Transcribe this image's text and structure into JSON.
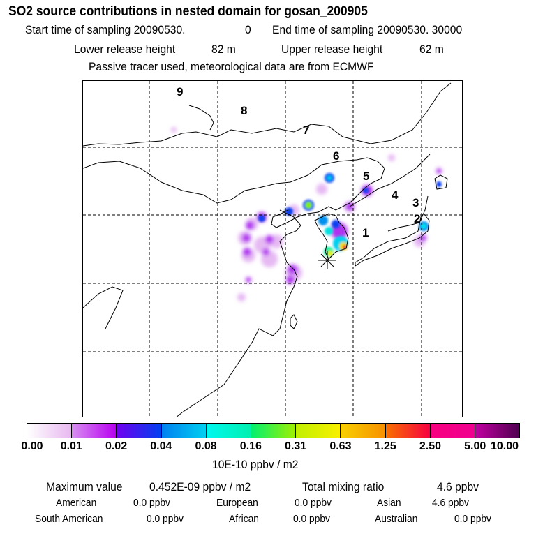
{
  "header": {
    "title": "SO2 source contributions in nested domain for gosan_200905",
    "start_label": "Start time of sampling 20090530.",
    "start_value": "0",
    "end_label": "End time of sampling 20090530. 30000",
    "lower_label": "Lower release height",
    "lower_value": "82 m",
    "upper_label": "Upper release height",
    "upper_value": "62 m",
    "note": "Passive tracer used, meteorological data are from ECMWF"
  },
  "map": {
    "region_labels": [
      "9",
      "8",
      "7",
      "6",
      "5",
      "4",
      "3",
      "2",
      "1"
    ],
    "receptor_marker": "asterisk-icon"
  },
  "colorbar": {
    "ticks": [
      "0.00",
      "0.01",
      "0.02",
      "0.04",
      "0.08",
      "0.16",
      "0.31",
      "0.63",
      "1.25",
      "2.50",
      "5.00",
      "10.00"
    ],
    "colors": [
      [
        "#ffffff",
        "#e8b8f0"
      ],
      [
        "#d890f0",
        "#b800f0"
      ],
      [
        "#7000f0",
        "#0040f0"
      ],
      [
        "#0080f0",
        "#00d0f0"
      ],
      [
        "#00f8f0",
        "#00f0b0"
      ],
      [
        "#00f070",
        "#a0f000"
      ],
      [
        "#c0f000",
        "#f8f000"
      ],
      [
        "#f8d000",
        "#f89000"
      ],
      [
        "#f87000",
        "#f80040"
      ],
      [
        "#f80080",
        "#f00090"
      ],
      [
        "#c000a0",
        "#500050"
      ]
    ],
    "unit": "10E-10 ppbv / m2"
  },
  "summary": {
    "max_label": "Maximum value",
    "max_value": "0.452E-09 ppbv / m2",
    "total_label": "Total mixing ratio",
    "total_value": "4.6 ppbv",
    "regions": [
      {
        "name": "American",
        "value": "0.0 ppbv"
      },
      {
        "name": "European",
        "value": "0.0 ppbv"
      },
      {
        "name": "Asian",
        "value": "4.6 ppbv"
      },
      {
        "name": "South American",
        "value": "0.0 ppbv"
      },
      {
        "name": "African",
        "value": "0.0 ppbv"
      },
      {
        "name": "Australian",
        "value": "0.0 ppbv"
      }
    ]
  }
}
